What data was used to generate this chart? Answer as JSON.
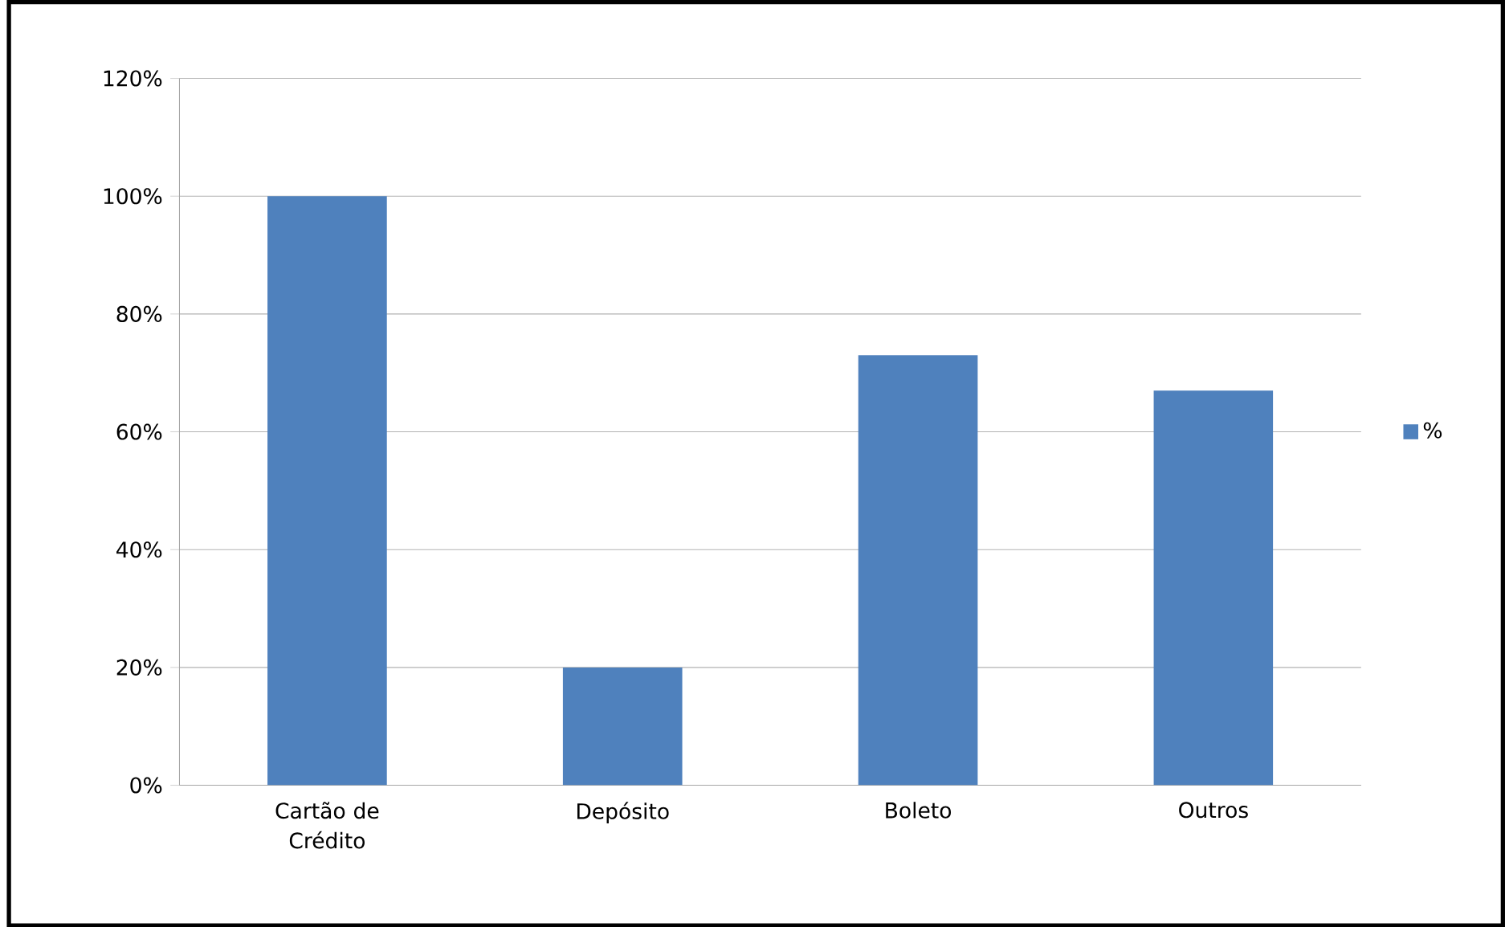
{
  "chart_data": {
    "type": "bar",
    "categories": [
      "Cartão de Crédito",
      "Depósito",
      "Boleto",
      "Outros"
    ],
    "series": [
      {
        "name": "%",
        "color": "#4f81bd",
        "values": [
          100,
          20,
          73,
          67
        ]
      }
    ],
    "ylim": [
      0,
      120
    ],
    "yticks": [
      {
        "value": 0,
        "label": "0%"
      },
      {
        "value": 20,
        "label": "20%"
      },
      {
        "value": 40,
        "label": "40%"
      },
      {
        "value": 60,
        "label": "60%"
      },
      {
        "value": 80,
        "label": "80%"
      },
      {
        "value": 100,
        "label": "100%"
      },
      {
        "value": 120,
        "label": "120%"
      }
    ],
    "grid": "y",
    "legend": "right"
  }
}
